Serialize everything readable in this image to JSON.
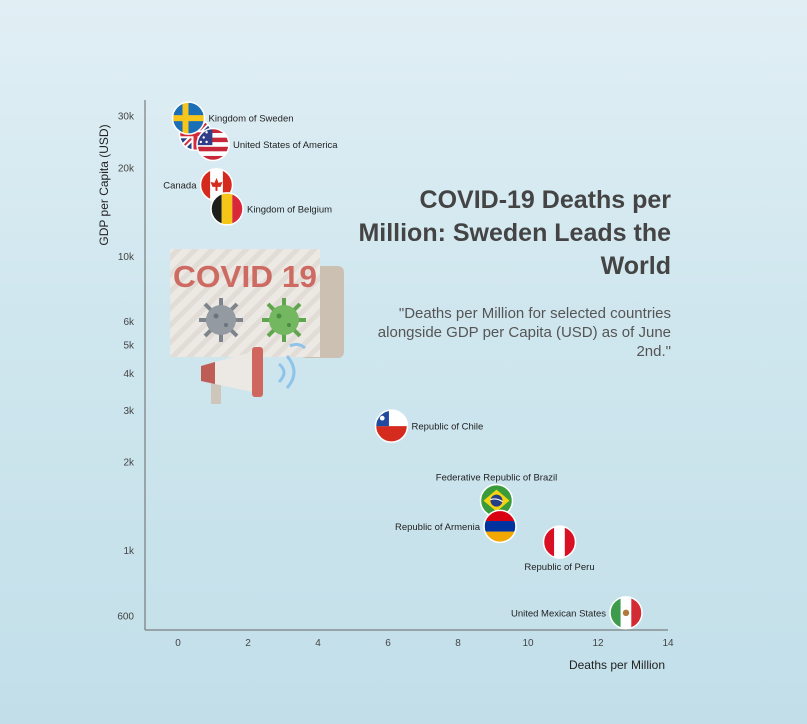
{
  "title": "COVID-19 Deaths per Million: Sweden Leads the World",
  "subtitle": "\"Deaths per Million for selected countries alongside GDP per Capita (USD) as of June 2nd.\"",
  "illustration": {
    "banner_text": "COVID 19"
  },
  "chart_data": {
    "type": "scatter",
    "xlabel": "Deaths per Million",
    "ylabel": "GDP per Capita (USD)",
    "xlim": [
      -1,
      14
    ],
    "ylim": [
      550,
      32000
    ],
    "yscale": "log",
    "x_ticks": [
      0,
      2,
      4,
      6,
      8,
      10,
      12,
      14
    ],
    "y_ticks": [
      {
        "v": 600,
        "label": "600"
      },
      {
        "v": 1000,
        "label": "1k"
      },
      {
        "v": 2000,
        "label": "2k"
      },
      {
        "v": 3000,
        "label": "3k"
      },
      {
        "v": 4000,
        "label": "4k"
      },
      {
        "v": 5000,
        "label": "5k"
      },
      {
        "v": 6000,
        "label": "6k"
      },
      {
        "v": 10000,
        "label": "10k"
      },
      {
        "v": 20000,
        "label": "20k"
      },
      {
        "v": 30000,
        "label": "30k"
      }
    ],
    "grid": false,
    "points": [
      {
        "name": "United Kingdom",
        "x": 0.5,
        "y": 26000,
        "flag": "uk",
        "label": ""
      },
      {
        "name": "Kingdom of Sweden",
        "x": 0.3,
        "y": 29500,
        "flag": "sweden",
        "label": "Kingdom of Sweden",
        "label_side": "right"
      },
      {
        "name": "United States of America",
        "x": 1.0,
        "y": 24000,
        "flag": "usa",
        "label": "United States of America",
        "label_side": "right"
      },
      {
        "name": "Canada",
        "x": 1.1,
        "y": 17500,
        "flag": "canada",
        "label": "Canada",
        "label_side": "left"
      },
      {
        "name": "Kingdom of Belgium",
        "x": 1.4,
        "y": 14500,
        "flag": "belgium",
        "label": "Kingdom of Belgium",
        "label_side": "right"
      },
      {
        "name": "Republic of Chile",
        "x": 6.1,
        "y": 2650,
        "flag": "chile",
        "label": "Republic of Chile",
        "label_side": "right"
      },
      {
        "name": "Federative Republic of Brazil",
        "x": 9.1,
        "y": 1480,
        "flag": "brazil",
        "label": "Federative Republic of Brazil",
        "label_side": "top"
      },
      {
        "name": "Republic of Armenia",
        "x": 9.2,
        "y": 1210,
        "flag": "armenia",
        "label": "Republic of Armenia",
        "label_side": "left"
      },
      {
        "name": "Republic of Peru",
        "x": 10.9,
        "y": 1070,
        "flag": "peru",
        "label": "Republic of Peru",
        "label_side": "bottom"
      },
      {
        "name": "United Mexican States",
        "x": 12.8,
        "y": 615,
        "flag": "mexico",
        "label": "United Mexican States",
        "label_side": "left"
      }
    ]
  }
}
